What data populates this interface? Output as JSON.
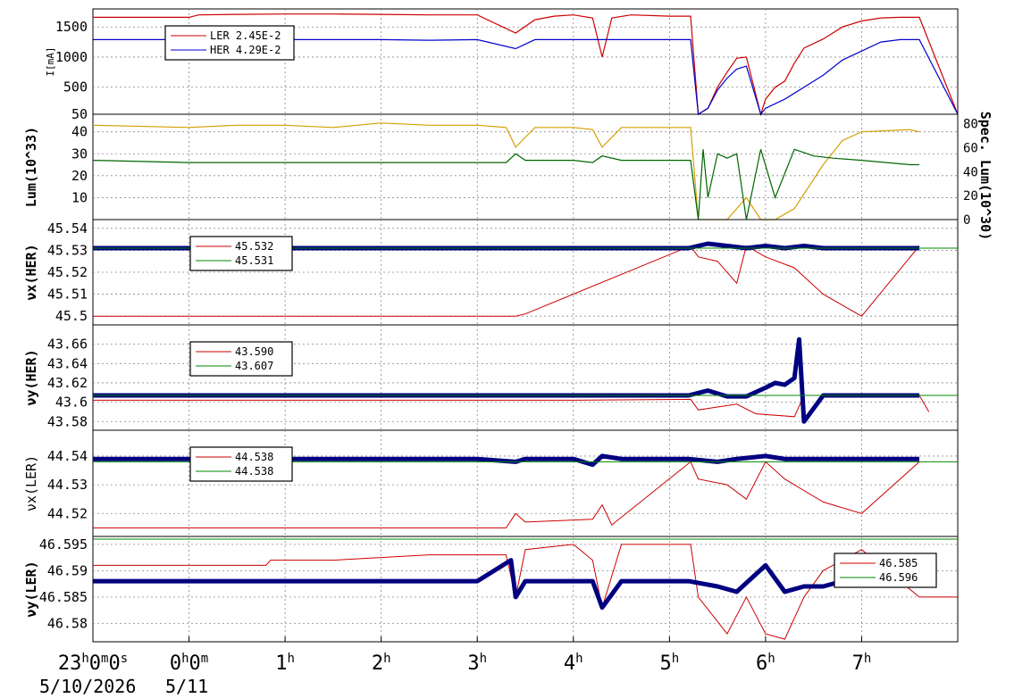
{
  "chart_data": [
    {
      "type": "line",
      "ylabel": "I[mA]",
      "ylim": [
        50,
        1800
      ],
      "yticks": [
        50,
        500,
        1000,
        1500
      ],
      "legend": {
        "placement": "top-left",
        "entries": [
          {
            "label": "LER",
            "value": "2.45E-2",
            "color": "#cc0000"
          },
          {
            "label": "HER",
            "value": "4.29E-2",
            "color": "#0000cc"
          }
        ]
      },
      "series": [
        {
          "name": "LER",
          "color": "#cc0000",
          "x": [
            -1,
            0,
            0.1,
            0.5,
            1,
            1.5,
            2,
            2.5,
            3,
            3.4,
            3.6,
            3.8,
            4,
            4.2,
            4.3,
            4.4,
            4.6,
            5,
            5.22,
            5.3,
            5.4,
            5.5,
            5.6,
            5.7,
            5.8,
            5.95,
            6,
            6.1,
            6.2,
            6.3,
            6.4,
            6.6,
            6.8,
            7,
            7.2,
            7.4,
            7.6,
            8
          ],
          "y": [
            1660,
            1660,
            1700,
            1710,
            1715,
            1715,
            1710,
            1700,
            1700,
            1400,
            1620,
            1680,
            1700,
            1650,
            1000,
            1650,
            1700,
            1680,
            1680,
            50,
            150,
            500,
            750,
            980,
            1000,
            50,
            300,
            500,
            600,
            900,
            1150,
            1300,
            1500,
            1600,
            1650,
            1660,
            1660,
            50
          ]
        },
        {
          "name": "HER",
          "color": "#0000cc",
          "x": [
            -1,
            0,
            0.5,
            1,
            1.5,
            2,
            2.5,
            3,
            3.4,
            3.6,
            4,
            4.5,
            5,
            5.22,
            5.3,
            5.4,
            5.5,
            5.6,
            5.7,
            5.8,
            5.95,
            6,
            6.2,
            6.4,
            6.6,
            6.8,
            7,
            7.2,
            7.4,
            7.6,
            8
          ],
          "y": [
            1290,
            1290,
            1290,
            1290,
            1290,
            1290,
            1280,
            1290,
            1140,
            1290,
            1290,
            1290,
            1290,
            1290,
            50,
            150,
            450,
            650,
            800,
            850,
            50,
            150,
            300,
            500,
            700,
            950,
            1100,
            1250,
            1290,
            1290,
            50
          ]
        }
      ]
    },
    {
      "type": "line",
      "ylabel": "Lum(10^33)",
      "ylabel_right": "Spec. Lum(10^30)",
      "ylim": [
        0,
        48
      ],
      "yticks": [
        10,
        20,
        30,
        40
      ],
      "yticks_right": [
        0,
        20,
        40,
        60,
        80
      ],
      "series": [
        {
          "name": "",
          "color": "#d4a000",
          "x": [
            -1,
            0,
            0.5,
            1,
            1.5,
            2,
            2.5,
            3,
            3.3,
            3.4,
            3.6,
            4,
            4.2,
            4.3,
            4.5,
            5,
            5.22,
            5.3,
            5.6,
            5.8,
            5.95,
            6.1,
            6.3,
            6.6,
            6.8,
            7,
            7.5,
            7.6
          ],
          "y": [
            43,
            42,
            43,
            43,
            42,
            44,
            43,
            43,
            42,
            33,
            42,
            42,
            41,
            33,
            42,
            42,
            42,
            0,
            0,
            10,
            0,
            0,
            5,
            25,
            36,
            40,
            41,
            40
          ]
        },
        {
          "name": "",
          "color": "#006600",
          "x": [
            -1,
            0,
            0.5,
            1,
            1.5,
            2,
            2.5,
            3,
            3.3,
            3.4,
            3.5,
            4,
            4.2,
            4.3,
            4.5,
            5,
            5.22,
            5.3,
            5.35,
            5.4,
            5.5,
            5.6,
            5.7,
            5.8,
            5.95,
            6.1,
            6.3,
            6.5,
            6.7,
            7,
            7.5,
            7.6
          ],
          "y": [
            27,
            26,
            26,
            26,
            26,
            26,
            26,
            26,
            26,
            30,
            27,
            27,
            26,
            29,
            27,
            27,
            27,
            0,
            32,
            10,
            30,
            28,
            30,
            0,
            32,
            10,
            32,
            29,
            28,
            27,
            25,
            25
          ]
        }
      ]
    },
    {
      "type": "scatter",
      "ylabel": "νx(HER)",
      "ylim": [
        45.496,
        45.544
      ],
      "yticks": [
        45.5,
        45.51,
        45.52,
        45.53,
        45.54
      ],
      "legend": {
        "placement": "top-left",
        "entries": [
          {
            "value": "45.532",
            "color": "#cc0000"
          },
          {
            "value": "45.531",
            "color": "#008800"
          }
        ]
      },
      "series": [
        {
          "name": "",
          "color": "#cc0000",
          "x": [
            -1,
            3.4,
            3.5,
            5.22,
            5.3,
            5.5,
            5.7,
            5.8,
            6.0,
            6.3,
            6.6,
            6.8,
            7,
            7.6
          ],
          "y": [
            45.5,
            45.5,
            45.501,
            45.532,
            45.527,
            45.525,
            45.515,
            45.532,
            45.527,
            45.522,
            45.51,
            45.505,
            45.5,
            45.532
          ]
        },
        {
          "name": "",
          "color": "#000080",
          "x": [
            -1,
            0,
            0.5,
            1,
            1.5,
            2,
            2.5,
            3,
            3.5,
            4,
            4.5,
            5,
            5.2,
            5.4,
            5.6,
            5.8,
            6.0,
            6.2,
            6.4,
            6.6,
            6.8,
            7.0,
            7.2,
            7.4,
            7.6
          ],
          "y": [
            45.531,
            45.531,
            45.531,
            45.531,
            45.531,
            45.531,
            45.531,
            45.531,
            45.531,
            45.531,
            45.531,
            45.531,
            45.531,
            45.533,
            45.532,
            45.531,
            45.532,
            45.531,
            45.532,
            45.531,
            45.531,
            45.531,
            45.531,
            45.531,
            45.531
          ]
        }
      ]
    },
    {
      "type": "scatter",
      "ylabel": "νy(HER)",
      "ylim": [
        43.571,
        43.68
      ],
      "yticks": [
        43.58,
        43.6,
        43.62,
        43.64,
        43.66
      ],
      "legend": {
        "placement": "top-left",
        "entries": [
          {
            "value": "43.590",
            "color": "#cc0000"
          },
          {
            "value": "43.607",
            "color": "#008800"
          }
        ]
      },
      "series": [
        {
          "name": "",
          "color": "#cc0000",
          "x": [
            -1,
            4,
            5.22,
            5.3,
            5.5,
            5.7,
            5.9,
            6.3,
            6.4,
            6.6,
            7,
            7.6,
            7.7
          ],
          "y": [
            43.602,
            43.602,
            43.603,
            43.592,
            43.595,
            43.598,
            43.588,
            43.585,
            43.607,
            43.607,
            43.607,
            43.607,
            43.59
          ]
        },
        {
          "name": "",
          "color": "#000080",
          "x": [
            -1,
            0,
            0.5,
            1,
            1.5,
            2,
            2.5,
            3,
            3.5,
            4,
            4.5,
            5,
            5.2,
            5.4,
            5.6,
            5.8,
            6.0,
            6.1,
            6.2,
            6.3,
            6.35,
            6.4,
            6.6,
            6.8,
            7,
            7.2,
            7.4,
            7.6
          ],
          "y": [
            43.607,
            43.607,
            43.607,
            43.607,
            43.607,
            43.607,
            43.607,
            43.607,
            43.607,
            43.607,
            43.607,
            43.607,
            43.607,
            43.612,
            43.606,
            43.606,
            43.615,
            43.62,
            43.618,
            43.625,
            43.665,
            43.58,
            43.607,
            43.607,
            43.607,
            43.607,
            43.607,
            43.607
          ]
        }
      ]
    },
    {
      "type": "scatter",
      "ylabel": "νx(LER)",
      "ylim": [
        44.512,
        44.549
      ],
      "yticks": [
        44.52,
        44.53,
        44.54
      ],
      "legend": {
        "placement": "top-left",
        "entries": [
          {
            "value": "44.538",
            "color": "#cc0000"
          },
          {
            "value": "44.538",
            "color": "#008800"
          }
        ]
      },
      "series": [
        {
          "name": "",
          "color": "#cc0000",
          "x": [
            -1,
            3.3,
            3.4,
            3.5,
            4.2,
            4.3,
            4.4,
            5.22,
            5.3,
            5.6,
            5.8,
            6.0,
            6.2,
            6.6,
            7,
            7.6
          ],
          "y": [
            44.515,
            44.515,
            44.52,
            44.517,
            44.518,
            44.523,
            44.516,
            44.538,
            44.532,
            44.53,
            44.525,
            44.538,
            44.532,
            44.524,
            44.52,
            44.538
          ]
        },
        {
          "name": "",
          "color": "#000080",
          "x": [
            -1,
            0,
            0.5,
            1,
            1.5,
            2,
            2.5,
            3,
            3.4,
            3.5,
            4,
            4.2,
            4.3,
            4.5,
            5,
            5.2,
            5.5,
            5.7,
            6.0,
            6.2,
            6.4,
            6.6,
            7,
            7.6
          ],
          "y": [
            44.539,
            44.539,
            44.539,
            44.539,
            44.539,
            44.539,
            44.539,
            44.539,
            44.538,
            44.539,
            44.539,
            44.537,
            44.54,
            44.539,
            44.539,
            44.539,
            44.538,
            44.539,
            44.54,
            44.539,
            44.539,
            44.539,
            44.539,
            44.539
          ]
        }
      ]
    },
    {
      "type": "scatter",
      "ylabel": "νy(LER)",
      "ylim": [
        46.5765,
        46.5965
      ],
      "yticks": [
        46.58,
        46.585,
        46.59,
        46.595
      ],
      "legend": {
        "placement": "top-right",
        "entries": [
          {
            "value": "46.585",
            "color": "#cc0000"
          },
          {
            "value": "46.596",
            "color": "#008800"
          }
        ]
      },
      "series": [
        {
          "name": "",
          "color": "#cc0000",
          "x": [
            -1,
            0.8,
            0.85,
            1.5,
            2.5,
            3.3,
            3.4,
            3.5,
            4,
            4.2,
            4.3,
            4.5,
            5,
            5.22,
            5.3,
            5.6,
            5.8,
            6.0,
            6.2,
            6.4,
            6.6,
            6.8,
            7,
            7.6,
            8
          ],
          "y": [
            46.591,
            46.591,
            46.592,
            46.592,
            46.593,
            46.593,
            46.585,
            46.594,
            46.595,
            46.592,
            46.583,
            46.595,
            46.595,
            46.595,
            46.585,
            46.578,
            46.585,
            46.578,
            46.577,
            46.585,
            46.59,
            46.592,
            46.594,
            46.585,
            46.585
          ]
        },
        {
          "name": "",
          "color": "#000080",
          "x": [
            -1,
            0,
            0.5,
            1,
            1.5,
            2,
            2.5,
            3,
            3.35,
            3.4,
            3.5,
            4,
            4.2,
            4.3,
            4.5,
            5,
            5.2,
            5.5,
            5.7,
            6.0,
            6.2,
            6.4,
            6.6,
            6.8,
            7,
            7.2,
            7.4,
            7.6
          ],
          "y": [
            46.588,
            46.588,
            46.588,
            46.588,
            46.588,
            46.588,
            46.588,
            46.588,
            46.592,
            46.585,
            46.588,
            46.588,
            46.588,
            46.583,
            46.588,
            46.588,
            46.588,
            46.587,
            46.586,
            46.591,
            46.586,
            46.587,
            46.587,
            46.588,
            46.588,
            46.588,
            46.589,
            46.588
          ]
        }
      ]
    }
  ],
  "xaxis": {
    "xlim": [
      -1,
      8
    ],
    "ticks": [
      {
        "x": -1,
        "hour": "23",
        "sup1": "h",
        "min": "0",
        "sup2": "m",
        "sec": "0",
        "sup3": "s"
      },
      {
        "x": 0,
        "hour": "0",
        "sup1": "h",
        "min": "0",
        "sup2": "m",
        "sec": "",
        "sup3": ""
      },
      {
        "x": 1,
        "hour": "1",
        "sup1": "h",
        "min": "",
        "sup2": "",
        "sec": "",
        "sup3": ""
      },
      {
        "x": 2,
        "hour": "2",
        "sup1": "h",
        "min": "",
        "sup2": "",
        "sec": "",
        "sup3": ""
      },
      {
        "x": 3,
        "hour": "3",
        "sup1": "h",
        "min": "",
        "sup2": "",
        "sec": "",
        "sup3": ""
      },
      {
        "x": 4,
        "hour": "4",
        "sup1": "h",
        "min": "",
        "sup2": "",
        "sec": "",
        "sup3": ""
      },
      {
        "x": 5,
        "hour": "5",
        "sup1": "h",
        "min": "",
        "sup2": "",
        "sec": "",
        "sup3": ""
      },
      {
        "x": 6,
        "hour": "6",
        "sup1": "h",
        "min": "",
        "sup2": "",
        "sec": "",
        "sup3": ""
      },
      {
        "x": 7,
        "hour": "7",
        "sup1": "h",
        "min": "",
        "sup2": "",
        "sec": "",
        "sup3": ""
      }
    ],
    "date_start": "5/10/2026",
    "date_next": "5/11"
  }
}
